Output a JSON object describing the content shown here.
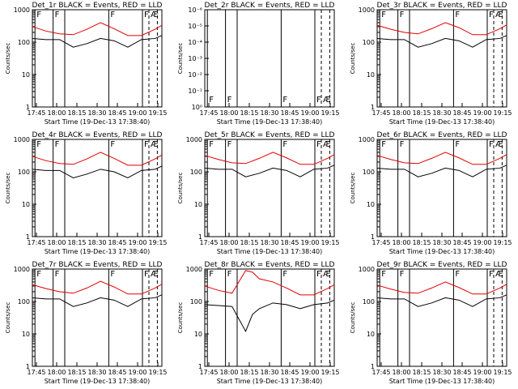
{
  "figure": {
    "time_ticks": [
      "17:45",
      "18:00",
      "18:15",
      "18:30",
      "18:45",
      "19:00",
      "19:15"
    ],
    "xlabel": "Start Time (19-Dec-13 17:38:40)",
    "ylabel": "Counts/sec",
    "y_ticks_standard": [
      "1000",
      "100",
      "10",
      "1"
    ],
    "y_ticks_det2": [
      "10⁰",
      "10⁻¹",
      "10⁻²",
      "10⁻³",
      "10⁻⁴",
      "10⁻⁵",
      "10⁻⁶"
    ],
    "flag_label": "F",
    "flag_label_last": "Æ",
    "colors": {
      "events": "#000000",
      "lld": "#e00000"
    }
  },
  "chart_data": [
    {
      "type": "line",
      "title": "Det_1r BLACK = Events, RED = LLD",
      "scale": "standard",
      "series": [
        {
          "name": "Events",
          "x": [
            0,
            10,
            20,
            30,
            40,
            50,
            60,
            70,
            80,
            90,
            95
          ],
          "y": [
            130,
            120,
            120,
            70,
            90,
            130,
            110,
            70,
            120,
            130,
            160
          ]
        },
        {
          "name": "LLD",
          "x": [
            0,
            10,
            20,
            30,
            40,
            50,
            60,
            70,
            80,
            90,
            95
          ],
          "y": [
            300,
            220,
            180,
            170,
            250,
            400,
            260,
            160,
            160,
            250,
            330
          ]
        }
      ]
    },
    {
      "type": "line",
      "title": "Det_2r BLACK = Events, RED = LLD",
      "scale": "det2",
      "series": []
    },
    {
      "type": "line",
      "title": "Det_3r BLACK = Events, RED = LLD",
      "scale": "standard",
      "series": [
        {
          "name": "Events",
          "x": [
            0,
            10,
            20,
            30,
            40,
            50,
            60,
            70,
            80,
            90,
            95
          ],
          "y": [
            130,
            120,
            120,
            70,
            90,
            130,
            110,
            70,
            120,
            130,
            160
          ]
        },
        {
          "name": "LLD",
          "x": [
            0,
            10,
            20,
            30,
            40,
            50,
            60,
            70,
            80,
            90,
            95
          ],
          "y": [
            330,
            250,
            200,
            180,
            260,
            400,
            280,
            170,
            170,
            260,
            340
          ]
        }
      ]
    },
    {
      "type": "line",
      "title": "Det_4r BLACK = Events, RED = LLD",
      "scale": "standard",
      "series": [
        {
          "name": "Events",
          "x": [
            0,
            10,
            20,
            30,
            40,
            50,
            60,
            70,
            80,
            90,
            95
          ],
          "y": [
            120,
            110,
            110,
            65,
            85,
            120,
            100,
            65,
            110,
            120,
            150
          ]
        },
        {
          "name": "LLD",
          "x": [
            0,
            10,
            20,
            30,
            40,
            50,
            60,
            70,
            80,
            90,
            95
          ],
          "y": [
            300,
            220,
            180,
            170,
            250,
            400,
            260,
            160,
            160,
            250,
            330
          ]
        }
      ]
    },
    {
      "type": "line",
      "title": "Det_5r BLACK = Events, RED = LLD",
      "scale": "standard",
      "series": [
        {
          "name": "Events",
          "x": [
            0,
            10,
            20,
            30,
            40,
            50,
            60,
            70,
            80,
            90,
            95
          ],
          "y": [
            130,
            120,
            120,
            70,
            90,
            130,
            110,
            70,
            120,
            130,
            160
          ]
        },
        {
          "name": "LLD",
          "x": [
            0,
            10,
            20,
            30,
            40,
            50,
            60,
            70,
            80,
            90,
            95
          ],
          "y": [
            320,
            240,
            190,
            180,
            260,
            400,
            270,
            170,
            170,
            260,
            340
          ]
        }
      ]
    },
    {
      "type": "line",
      "title": "Det_6r BLACK = Events, RED = LLD",
      "scale": "standard",
      "series": [
        {
          "name": "Events",
          "x": [
            0,
            10,
            20,
            30,
            40,
            50,
            60,
            70,
            80,
            90,
            95
          ],
          "y": [
            130,
            120,
            120,
            70,
            90,
            130,
            110,
            70,
            120,
            130,
            160
          ]
        },
        {
          "name": "LLD",
          "x": [
            0,
            10,
            20,
            30,
            40,
            50,
            60,
            70,
            80,
            90,
            95
          ],
          "y": [
            320,
            240,
            190,
            180,
            260,
            400,
            270,
            170,
            170,
            260,
            340
          ]
        }
      ]
    },
    {
      "type": "line",
      "title": "Det_7r BLACK = Events, RED = LLD",
      "scale": "standard",
      "series": [
        {
          "name": "Events",
          "x": [
            0,
            10,
            20,
            30,
            40,
            50,
            60,
            70,
            80,
            90,
            95
          ],
          "y": [
            130,
            120,
            120,
            70,
            90,
            130,
            110,
            70,
            120,
            130,
            160
          ]
        },
        {
          "name": "LLD",
          "x": [
            0,
            10,
            20,
            30,
            40,
            50,
            60,
            70,
            80,
            90,
            95
          ],
          "y": [
            330,
            250,
            200,
            180,
            260,
            420,
            280,
            170,
            170,
            260,
            340
          ]
        }
      ]
    },
    {
      "type": "line",
      "title": "Det_8r BLACK = Events, RED = LLD",
      "scale": "standard",
      "series": [
        {
          "name": "Events",
          "x": [
            0,
            10,
            20,
            30,
            35,
            40,
            50,
            60,
            70,
            80,
            90,
            95
          ],
          "y": [
            80,
            75,
            70,
            12,
            40,
            60,
            90,
            80,
            60,
            80,
            90,
            110
          ]
        },
        {
          "name": "LLD",
          "x": [
            0,
            10,
            20,
            30,
            35,
            40,
            50,
            60,
            70,
            80,
            90,
            95
          ],
          "y": [
            300,
            220,
            180,
            900,
            800,
            500,
            400,
            260,
            160,
            160,
            250,
            330
          ]
        }
      ]
    },
    {
      "type": "line",
      "title": "Det_9r BLACK = Events, RED = LLD",
      "scale": "standard",
      "series": [
        {
          "name": "Events",
          "x": [
            0,
            10,
            20,
            30,
            40,
            50,
            60,
            70,
            80,
            90,
            95
          ],
          "y": [
            130,
            120,
            120,
            70,
            90,
            130,
            110,
            70,
            120,
            130,
            160
          ]
        },
        {
          "name": "LLD",
          "x": [
            0,
            10,
            20,
            30,
            40,
            50,
            60,
            70,
            80,
            90,
            95
          ],
          "y": [
            320,
            240,
            190,
            180,
            260,
            400,
            270,
            170,
            170,
            260,
            340
          ]
        }
      ]
    }
  ]
}
